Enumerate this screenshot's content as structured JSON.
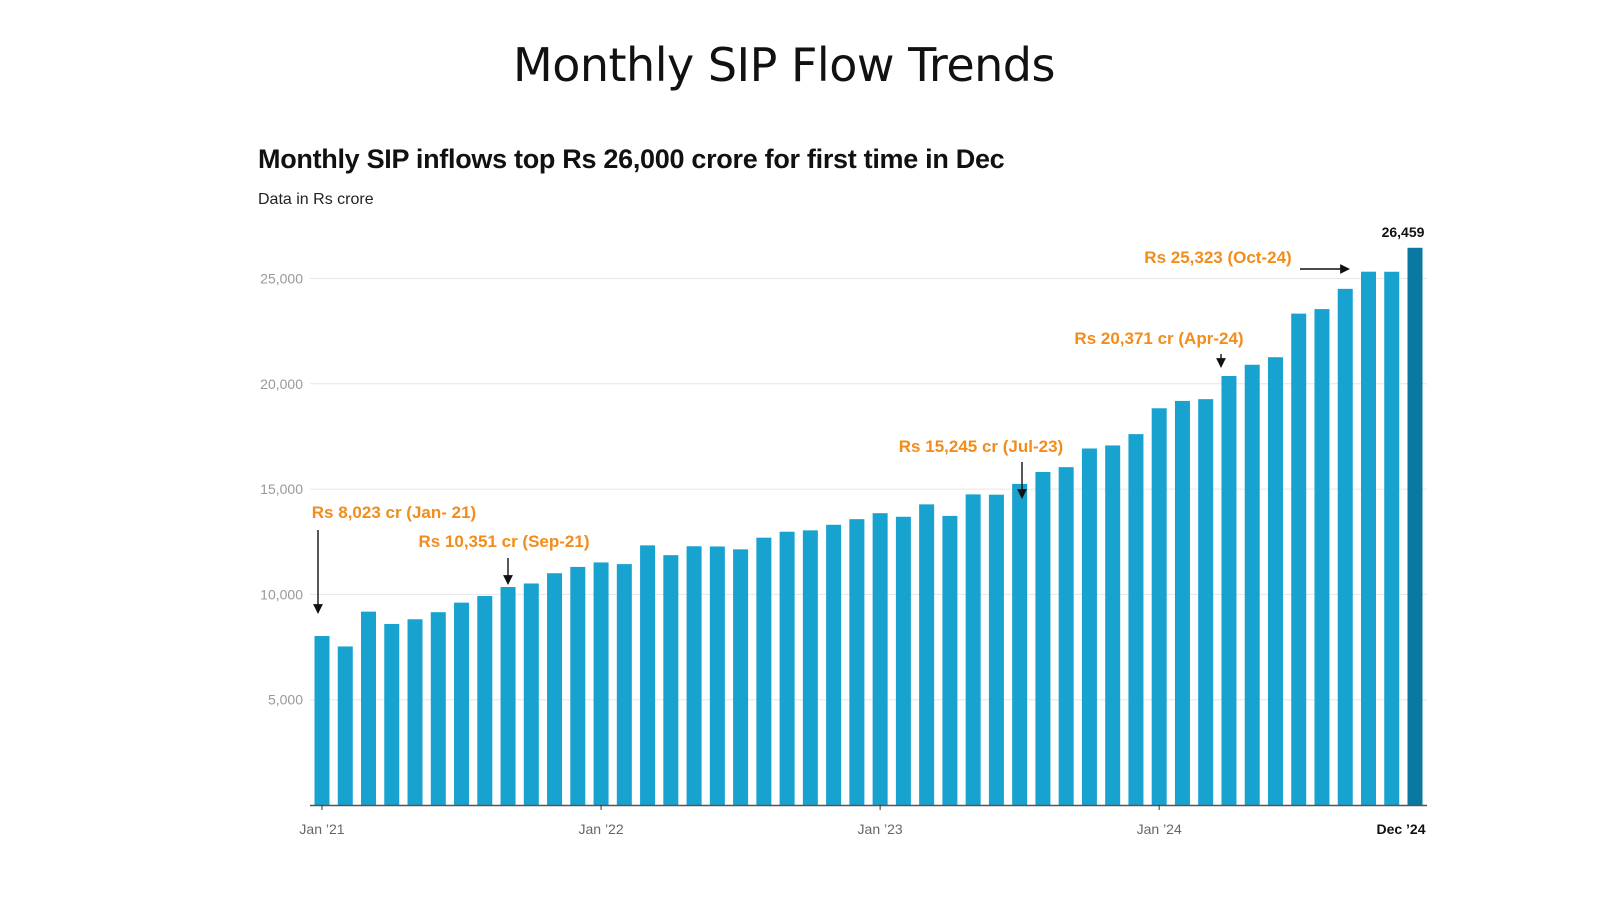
{
  "page": {
    "title": "Monthly SIP Flow Trends"
  },
  "chart_data": {
    "type": "bar",
    "title": "Monthly SIP inflows top Rs 26,000 crore for first time in Dec",
    "subtitle": "Data in Rs crore",
    "xlabel": "",
    "ylabel": "",
    "ylim": [
      0,
      26459
    ],
    "grid": true,
    "yticks": [
      5000,
      10000,
      15000,
      20000,
      25000
    ],
    "ytick_labels": [
      "5,000",
      "10,000",
      "15,000",
      "20,000",
      "25,000"
    ],
    "xtick_labels": [
      {
        "index": 0,
        "label": "Jan ’21",
        "bold": false
      },
      {
        "index": 12,
        "label": "Jan ’22",
        "bold": false
      },
      {
        "index": 24,
        "label": "Jan ’23",
        "bold": false
      },
      {
        "index": 36,
        "label": "Jan ’24",
        "bold": false
      },
      {
        "index": 47,
        "label": "Dec ’24",
        "bold": true
      }
    ],
    "categories": [
      "Jan-21",
      "Feb-21",
      "Mar-21",
      "Apr-21",
      "May-21",
      "Jun-21",
      "Jul-21",
      "Aug-21",
      "Sep-21",
      "Oct-21",
      "Nov-21",
      "Dec-21",
      "Jan-22",
      "Feb-22",
      "Mar-22",
      "Apr-22",
      "May-22",
      "Jun-22",
      "Jul-22",
      "Aug-22",
      "Sep-22",
      "Oct-22",
      "Nov-22",
      "Dec-22",
      "Jan-23",
      "Feb-23",
      "Mar-23",
      "Apr-23",
      "May-23",
      "Jun-23",
      "Jul-23",
      "Aug-23",
      "Sep-23",
      "Oct-23",
      "Nov-23",
      "Dec-23",
      "Jan-24",
      "Feb-24",
      "Mar-24",
      "Apr-24",
      "May-24",
      "Jun-24",
      "Jul-24",
      "Aug-24",
      "Sep-24",
      "Oct-24",
      "Nov-24",
      "Dec-24"
    ],
    "values": [
      8023,
      7528,
      9182,
      8596,
      8819,
      9156,
      9609,
      9923,
      10351,
      10519,
      11005,
      11305,
      11517,
      11438,
      12328,
      11863,
      12286,
      12276,
      12140,
      12693,
      12976,
      13041,
      13306,
      13573,
      13856,
      13686,
      14276,
      13728,
      14749,
      14734,
      15245,
      15814,
      16042,
      16928,
      17073,
      17610,
      18838,
      19187,
      19271,
      20371,
      20904,
      21262,
      23332,
      23547,
      24509,
      25323,
      25320,
      26459
    ],
    "highlight_index": 47,
    "highlight_label": "26,459",
    "colors": {
      "bar": "#17a2cf",
      "highlight": "#0a78a0",
      "annotation": "#f28c1b",
      "grid": "#e6e6e6",
      "axis": "#555555"
    },
    "annotations": [
      {
        "text": "Rs 8,023 cr (Jan- 21)",
        "index": 0,
        "arrow": "down"
      },
      {
        "text": "Rs 10,351 cr (Sep-21)",
        "index": 8,
        "arrow": "down"
      },
      {
        "text": "Rs 15,245 cr (Jul-23)",
        "index": 30,
        "arrow": "down"
      },
      {
        "text": "Rs 20,371 cr (Apr-24)",
        "index": 39,
        "arrow": "down"
      },
      {
        "text": "Rs 25,323 (Oct-24)",
        "index": 45,
        "arrow": "right"
      }
    ]
  }
}
